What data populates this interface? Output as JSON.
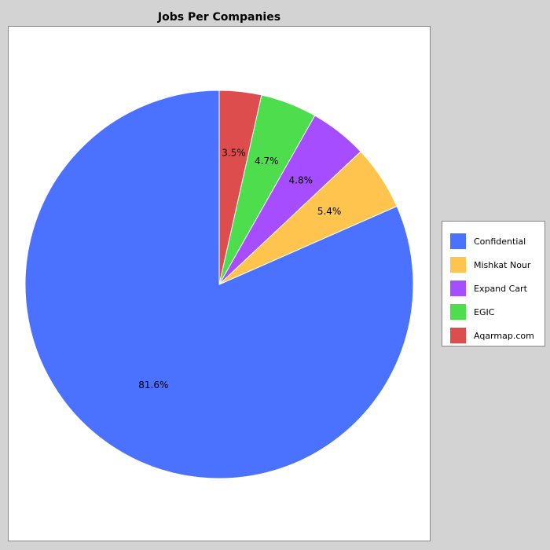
{
  "chart_data": {
    "type": "pie",
    "title": "Jobs Per Companies",
    "categories": [
      "Confidential",
      "Mishkat Nour",
      "Expand Cart",
      "EGIC",
      "Aqarmap.com"
    ],
    "values": [
      81.6,
      5.4,
      4.8,
      4.7,
      3.5
    ],
    "labels": [
      "81.6%",
      "5.4%",
      "4.8%",
      "4.7%",
      "3.5%"
    ],
    "colors": [
      "#4a71ff",
      "#ffc44d",
      "#a64dff",
      "#4ddd4d",
      "#dd4d4d"
    ],
    "legend_placement": "right"
  }
}
